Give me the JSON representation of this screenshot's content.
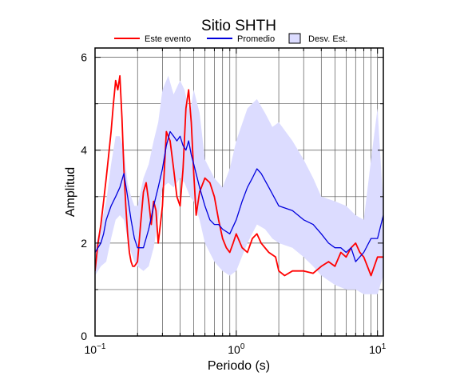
{
  "chart_data": {
    "type": "line",
    "title": "Sitio SHTH",
    "xlabel": "Periodo (s)",
    "ylabel": "Amplitud",
    "xscale": "log",
    "xlim": [
      0.1,
      11
    ],
    "ylim": [
      0,
      6.2
    ],
    "yticks": [
      0,
      2,
      4,
      6
    ],
    "xtick_labels": [
      {
        "value": 0.1,
        "base": "10",
        "exp": "−1"
      },
      {
        "value": 1,
        "base": "10",
        "exp": "0"
      },
      {
        "value": 10,
        "base": "10",
        "exp": "1"
      }
    ],
    "grid": true,
    "legend_position": "top",
    "legend": [
      {
        "label": "Este evento",
        "kind": "line",
        "color": "#ff0000"
      },
      {
        "label": "Promedio",
        "kind": "line",
        "color": "#0000dd"
      },
      {
        "label": "Desv. Est.",
        "kind": "box",
        "color": "#dcdcff"
      }
    ],
    "band": {
      "name": "Desv. Est.",
      "color": "#dcdcff",
      "x": [
        0.1,
        0.11,
        0.12,
        0.13,
        0.14,
        0.15,
        0.16,
        0.17,
        0.18,
        0.19,
        0.2,
        0.22,
        0.24,
        0.26,
        0.28,
        0.3,
        0.33,
        0.36,
        0.4,
        0.43,
        0.47,
        0.5,
        0.55,
        0.6,
        0.7,
        0.8,
        0.9,
        1.0,
        1.2,
        1.4,
        1.6,
        1.8,
        2.0,
        2.5,
        3.0,
        3.5,
        4.0,
        5.0,
        6.0,
        7.0,
        8.0,
        9.0,
        10.0,
        11.0
      ],
      "upper": [
        1.9,
        2.4,
        2.9,
        3.7,
        4.3,
        4.3,
        4.0,
        3.3,
        3.0,
        2.8,
        2.8,
        3.4,
        3.7,
        4.2,
        4.6,
        5.3,
        5.6,
        5.2,
        5.5,
        5.3,
        4.8,
        5.3,
        4.8,
        3.8,
        3.4,
        3.2,
        3.6,
        4.2,
        4.9,
        5.1,
        4.8,
        4.5,
        4.6,
        4.2,
        3.8,
        3.4,
        3.0,
        2.9,
        2.8,
        2.6,
        2.5,
        3.8,
        4.9,
        2.8
      ],
      "lower": [
        1.3,
        1.5,
        1.6,
        2.1,
        2.5,
        2.6,
        2.5,
        2.1,
        1.8,
        1.6,
        1.5,
        1.4,
        1.5,
        1.9,
        2.5,
        3.2,
        3.3,
        3.2,
        3.4,
        3.3,
        3.0,
        2.9,
        2.5,
        2.0,
        1.6,
        1.4,
        1.3,
        1.4,
        2.0,
        2.4,
        2.3,
        2.1,
        2.0,
        1.9,
        1.7,
        1.5,
        1.3,
        1.1,
        1.0,
        1.0,
        0.9,
        0.9,
        0.9,
        1.3
      ]
    },
    "series": [
      {
        "name": "Este evento",
        "color": "#ff0000",
        "x": [
          0.1,
          0.105,
          0.11,
          0.115,
          0.12,
          0.125,
          0.13,
          0.135,
          0.14,
          0.145,
          0.15,
          0.155,
          0.16,
          0.165,
          0.17,
          0.175,
          0.18,
          0.185,
          0.19,
          0.2,
          0.21,
          0.22,
          0.23,
          0.24,
          0.25,
          0.26,
          0.27,
          0.28,
          0.29,
          0.3,
          0.32,
          0.34,
          0.36,
          0.38,
          0.4,
          0.42,
          0.44,
          0.46,
          0.48,
          0.5,
          0.52,
          0.55,
          0.6,
          0.65,
          0.7,
          0.75,
          0.8,
          0.85,
          0.9,
          0.95,
          1.0,
          1.1,
          1.2,
          1.3,
          1.4,
          1.5,
          1.7,
          1.9,
          2.0,
          2.2,
          2.5,
          3.0,
          3.5,
          4.0,
          4.5,
          5.0,
          5.5,
          6.0,
          6.5,
          7.0,
          7.5,
          8.0,
          9.0,
          10.0,
          11.0
        ],
        "values": [
          1.4,
          2.0,
          2.4,
          2.9,
          3.4,
          3.9,
          4.4,
          5.0,
          5.5,
          5.3,
          5.6,
          4.7,
          3.6,
          2.8,
          2.2,
          1.8,
          1.6,
          1.5,
          1.5,
          1.6,
          2.4,
          3.1,
          3.3,
          2.9,
          2.4,
          2.9,
          2.7,
          2.0,
          2.4,
          2.8,
          4.4,
          4.2,
          3.6,
          3.0,
          2.8,
          3.6,
          4.9,
          5.3,
          4.6,
          3.5,
          2.6,
          3.1,
          3.4,
          3.3,
          3.0,
          2.5,
          2.1,
          1.9,
          1.8,
          2.0,
          2.2,
          1.9,
          1.8,
          2.1,
          2.2,
          2.0,
          1.8,
          1.7,
          1.4,
          1.3,
          1.4,
          1.4,
          1.35,
          1.5,
          1.6,
          1.5,
          1.8,
          1.7,
          1.9,
          2.0,
          1.8,
          1.7,
          1.3,
          1.7,
          1.7
        ]
      },
      {
        "name": "Promedio",
        "color": "#0000dd",
        "x": [
          0.1,
          0.105,
          0.11,
          0.115,
          0.12,
          0.13,
          0.14,
          0.15,
          0.16,
          0.17,
          0.18,
          0.19,
          0.2,
          0.22,
          0.24,
          0.26,
          0.28,
          0.3,
          0.32,
          0.34,
          0.36,
          0.38,
          0.4,
          0.42,
          0.44,
          0.46,
          0.48,
          0.5,
          0.55,
          0.6,
          0.65,
          0.7,
          0.75,
          0.8,
          0.9,
          1.0,
          1.1,
          1.2,
          1.3,
          1.4,
          1.5,
          1.7,
          2.0,
          2.5,
          3.0,
          3.5,
          4.0,
          4.5,
          5.0,
          5.5,
          6.0,
          6.5,
          7.0,
          8.0,
          9.0,
          10.0,
          11.0
        ],
        "values": [
          1.8,
          1.9,
          2.0,
          2.2,
          2.5,
          2.8,
          3.0,
          3.2,
          3.5,
          3.0,
          2.5,
          2.1,
          1.9,
          1.9,
          2.3,
          2.8,
          3.2,
          3.6,
          4.1,
          4.4,
          4.3,
          4.2,
          4.3,
          4.1,
          4.0,
          4.2,
          3.9,
          3.7,
          3.2,
          2.8,
          2.5,
          2.4,
          2.4,
          2.3,
          2.2,
          2.5,
          2.9,
          3.2,
          3.4,
          3.6,
          3.5,
          3.2,
          2.8,
          2.7,
          2.5,
          2.4,
          2.2,
          2.0,
          1.9,
          1.9,
          1.8,
          1.9,
          1.6,
          1.8,
          2.1,
          2.1,
          2.6
        ]
      }
    ]
  }
}
